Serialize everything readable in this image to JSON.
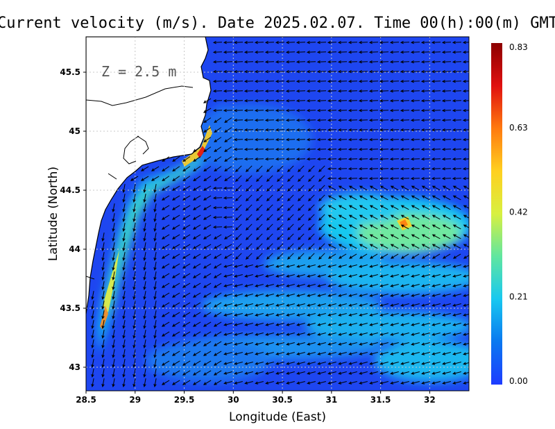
{
  "chart_data": {
    "type": "vector-field-map",
    "title": "Current velocity (m/s). Date 2025.02.07. Time 00(h):00(m) GMT",
    "xlabel": "Longitude (East)",
    "ylabel": "Latitude (North)",
    "depth_label": "Z = 2.5 m",
    "xlim": [
      28.5,
      32.4
    ],
    "ylim": [
      42.8,
      45.8
    ],
    "x_ticks": [
      "28.5",
      "29",
      "29.5",
      "30",
      "30.5",
      "31",
      "31.5",
      "32"
    ],
    "y_ticks": [
      "43",
      "43.5",
      "44",
      "44.5",
      "45",
      "45.5"
    ],
    "grid": true,
    "colorbar": {
      "min": 0.0,
      "max": 0.83,
      "tick_labels": [
        "0.83",
        "0.63",
        "0.42",
        "0.21",
        "0.00"
      ],
      "colors": [
        "#1e3cff",
        "#0a78f0",
        "#18c8f0",
        "#60e6a0",
        "#d8f040",
        "#ffd020",
        "#ff7a10",
        "#e01010",
        "#8c0000"
      ]
    },
    "land_color": "#ffffff",
    "coastline_color": "#000000",
    "arrow_color": "#000000"
  }
}
